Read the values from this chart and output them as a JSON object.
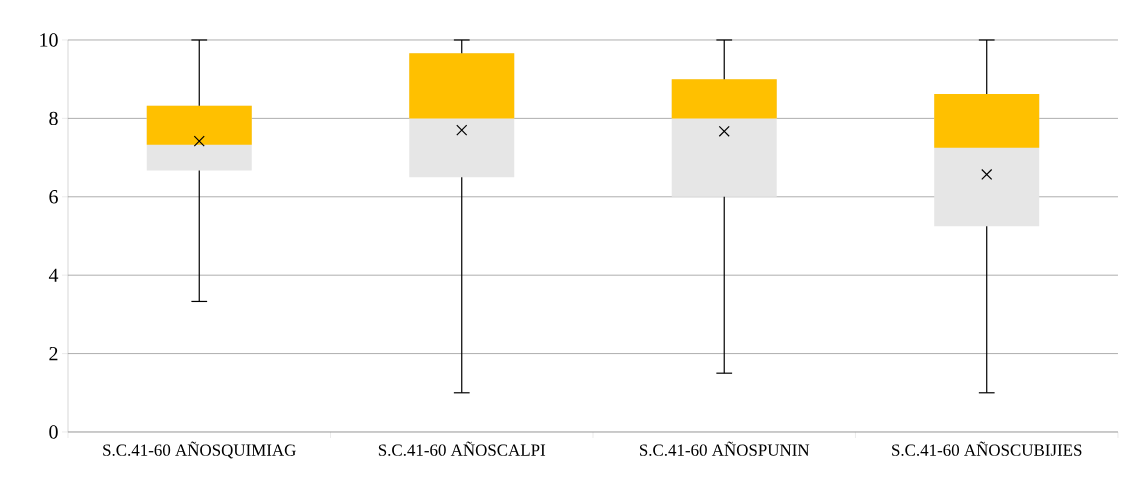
{
  "chart_data": {
    "type": "box",
    "categories": [
      "S.C.41-60 AÑOSQUIMIAG",
      "S.C.41-60 AÑOSCALPI",
      "S.C.41-60 AÑOSPUNIN",
      "S.C.41-60 AÑOSCUBIJIES"
    ],
    "boxes": [
      {
        "low": 3.33,
        "q1": 6.67,
        "median": 7.33,
        "q3": 8.32,
        "high": 10,
        "mean": 7.42
      },
      {
        "low": 1.0,
        "q1": 6.5,
        "median": 8.0,
        "q3": 9.66,
        "high": 10,
        "mean": 7.7
      },
      {
        "low": 1.5,
        "q1": 6.0,
        "median": 8.0,
        "q3": 9.0,
        "high": 10,
        "mean": 7.67
      },
      {
        "low": 1.0,
        "q1": 5.25,
        "median": 7.25,
        "q3": 8.62,
        "high": 10,
        "mean": 6.57
      }
    ],
    "color": "#e6e6e6",
    "marker": "cross",
    "ylim": [
      0,
      10
    ],
    "yticks": [
      0,
      2,
      4,
      6,
      8,
      10
    ],
    "grid": "y"
  }
}
